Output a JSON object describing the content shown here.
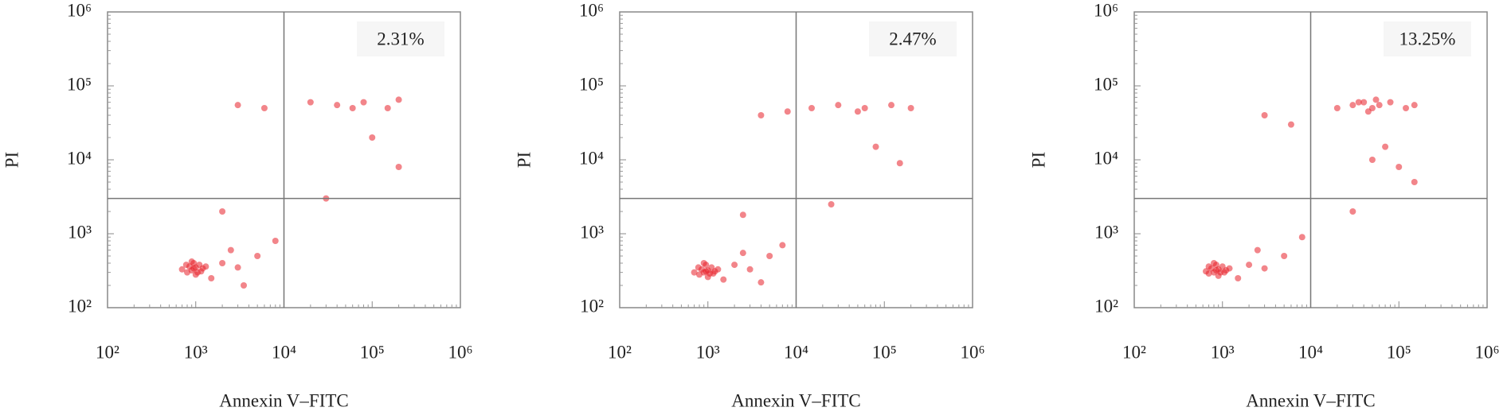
{
  "chart_data": [
    {
      "type": "scatter",
      "xlabel": "Annexin V–FITC",
      "ylabel": "PI",
      "annotation": "2.31%",
      "xscale": "log",
      "yscale": "log",
      "xlim": [
        100,
        1000000
      ],
      "ylim": [
        100,
        1000000
      ],
      "xticks": [
        {
          "value": 100,
          "label": "10²"
        },
        {
          "value": 1000,
          "label": "10³"
        },
        {
          "value": 10000,
          "label": "10⁴"
        },
        {
          "value": 100000,
          "label": "10⁵"
        },
        {
          "value": 1000000,
          "label": "10⁶"
        }
      ],
      "yticks": [
        {
          "value": 100,
          "label": "10²"
        },
        {
          "value": 1000,
          "label": "10³"
        },
        {
          "value": 10000,
          "label": "10⁴"
        },
        {
          "value": 100000,
          "label": "10⁵"
        },
        {
          "value": 1000000,
          "label": "10⁶"
        }
      ],
      "gate_x": 10000,
      "gate_y": 3000,
      "series": [
        {
          "color": "#e8202a",
          "x": [
            1000,
            900,
            1100,
            800,
            950,
            1050,
            850,
            1200,
            700,
            1000,
            900,
            1150,
            780,
            1300,
            950,
            2000,
            3000,
            5000,
            2500,
            8000,
            1500,
            3500,
            20000,
            40000,
            80000,
            150000,
            200000,
            60000,
            3000,
            6000,
            100000,
            200000,
            30000,
            2000
          ],
          "y": [
            350,
            320,
            380,
            300,
            400,
            300,
            360,
            340,
            330,
            280,
            420,
            310,
            380,
            360,
            340,
            400,
            350,
            500,
            600,
            800,
            250,
            200,
            60000,
            55000,
            60000,
            50000,
            65000,
            50000,
            55000,
            50000,
            20000,
            8000,
            3000,
            2000
          ]
        }
      ]
    },
    {
      "type": "scatter",
      "xlabel": "Annexin V–FITC",
      "ylabel": "PI",
      "annotation": "2.47%",
      "xscale": "log",
      "yscale": "log",
      "xlim": [
        100,
        1000000
      ],
      "ylim": [
        100,
        1000000
      ],
      "xticks": [
        {
          "value": 100,
          "label": "10²"
        },
        {
          "value": 1000,
          "label": "10³"
        },
        {
          "value": 10000,
          "label": "10⁴"
        },
        {
          "value": 100000,
          "label": "10⁵"
        },
        {
          "value": 1000000,
          "label": "10⁶"
        }
      ],
      "yticks": [
        {
          "value": 100,
          "label": "10²"
        },
        {
          "value": 1000,
          "label": "10³"
        },
        {
          "value": 10000,
          "label": "10⁴"
        },
        {
          "value": 100000,
          "label": "10⁵"
        },
        {
          "value": 1000000,
          "label": "10⁶"
        }
      ],
      "gate_x": 10000,
      "gate_y": 3000,
      "series": [
        {
          "color": "#e8202a",
          "x": [
            1000,
            900,
            1100,
            800,
            950,
            1050,
            850,
            1200,
            700,
            1000,
            900,
            1150,
            780,
            1300,
            950,
            2000,
            3000,
            5000,
            2500,
            7000,
            1500,
            4000,
            15000,
            30000,
            60000,
            120000,
            200000,
            50000,
            4000,
            8000,
            80000,
            150000,
            25000,
            2500
          ],
          "y": [
            320,
            300,
            350,
            280,
            380,
            290,
            330,
            310,
            300,
            260,
            400,
            290,
            350,
            330,
            310,
            380,
            330,
            500,
            550,
            700,
            240,
            220,
            50000,
            55000,
            50000,
            55000,
            50000,
            45000,
            40000,
            45000,
            15000,
            9000,
            2500,
            1800
          ]
        }
      ]
    },
    {
      "type": "scatter",
      "xlabel": "Annexin V–FITC",
      "ylabel": "PI",
      "annotation": "13.25%",
      "xscale": "log",
      "yscale": "log",
      "xlim": [
        100,
        1000000
      ],
      "ylim": [
        100,
        1000000
      ],
      "xticks": [
        {
          "value": 100,
          "label": "10²"
        },
        {
          "value": 1000,
          "label": "10³"
        },
        {
          "value": 10000,
          "label": "10⁴"
        },
        {
          "value": 100000,
          "label": "10⁵"
        },
        {
          "value": 1000000,
          "label": "10⁶"
        }
      ],
      "yticks": [
        {
          "value": 100,
          "label": "10²"
        },
        {
          "value": 1000,
          "label": "10³"
        },
        {
          "value": 10000,
          "label": "10⁴"
        },
        {
          "value": 100000,
          "label": "10⁵"
        },
        {
          "value": 1000000,
          "label": "10⁶"
        }
      ],
      "gate_x": 10000,
      "gate_y": 3000,
      "series": [
        {
          "color": "#e8202a",
          "x": [
            900,
            800,
            1000,
            700,
            850,
            950,
            750,
            1100,
            650,
            900,
            800,
            1050,
            700,
            1200,
            850,
            2000,
            3000,
            5000,
            2500,
            8000,
            1500,
            20000,
            30000,
            40000,
            50000,
            60000,
            80000,
            120000,
            150000,
            45000,
            35000,
            55000,
            70000,
            100000,
            150000,
            50000,
            30000,
            3000,
            6000
          ],
          "y": [
            330,
            300,
            360,
            290,
            380,
            300,
            340,
            320,
            310,
            270,
            400,
            300,
            360,
            340,
            320,
            380,
            340,
            500,
            600,
            900,
            250,
            50000,
            55000,
            60000,
            50000,
            55000,
            60000,
            50000,
            55000,
            45000,
            60000,
            65000,
            15000,
            8000,
            5000,
            10000,
            2000,
            40000,
            30000
          ]
        }
      ]
    }
  ]
}
